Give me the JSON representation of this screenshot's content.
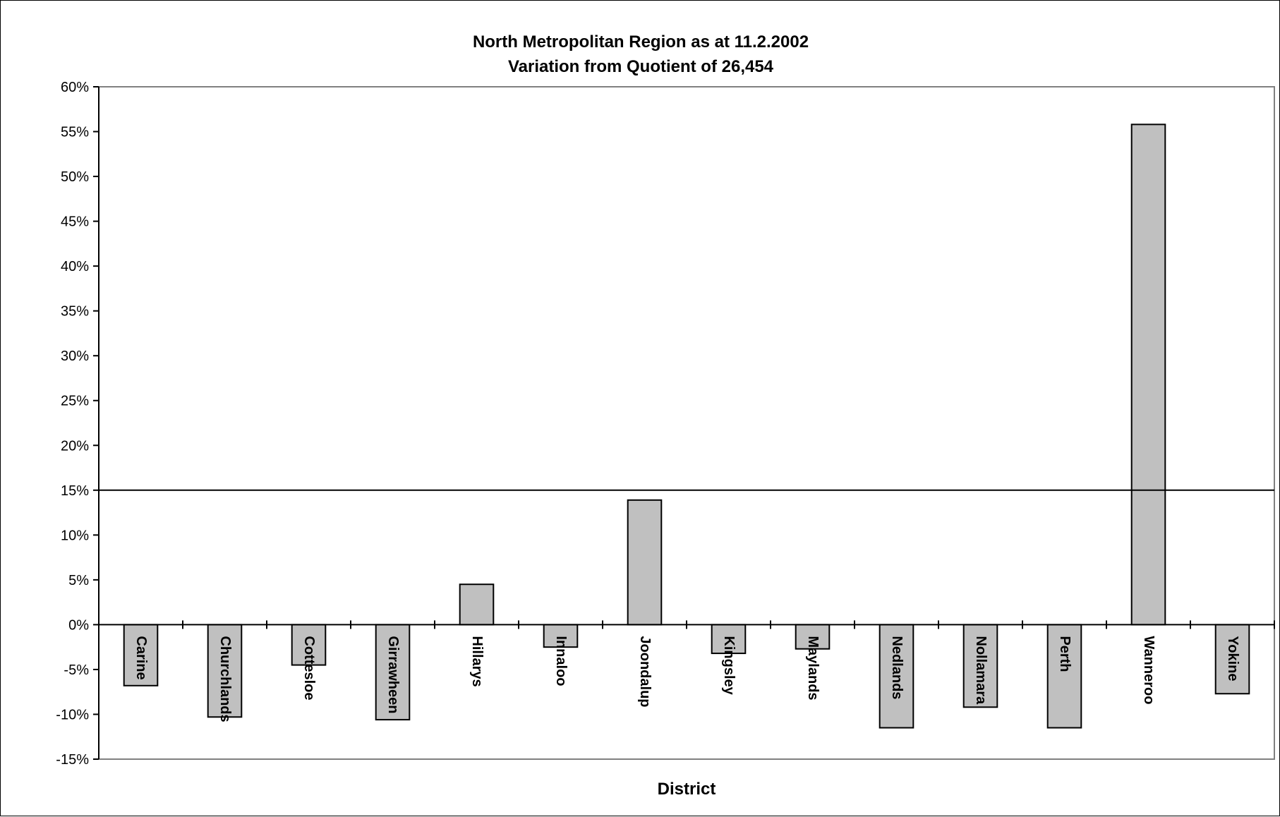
{
  "chart_data": {
    "type": "bar",
    "title_line1": "North Metropolitan Region as at 11.2.2002",
    "title_line2": "Variation from Quotient of 26,454",
    "xlabel": "District",
    "ylabel": "",
    "ylim": [
      -15,
      60
    ],
    "ytick_step": 5,
    "ytick_labels": [
      "-15%",
      "-10%",
      "-5%",
      "0%",
      "5%",
      "10%",
      "15%",
      "20%",
      "25%",
      "30%",
      "35%",
      "40%",
      "45%",
      "50%",
      "55%",
      "60%"
    ],
    "reference_line": 15,
    "categories": [
      "Carine",
      "Churchlands",
      "Cottesloe",
      "Girrawheen",
      "Hillarys",
      "Innaloo",
      "Joondalup",
      "Kingsley",
      "Maylands",
      "Nedlands",
      "Nollamara",
      "Perth",
      "Wanneroo",
      "Yokine"
    ],
    "values": [
      -6.8,
      -10.3,
      -4.5,
      -10.6,
      4.5,
      -2.5,
      13.9,
      -3.2,
      -2.7,
      -11.5,
      -9.2,
      -11.5,
      55.8,
      -7.7
    ],
    "bar_color": "#c0c0c0",
    "grid": false,
    "legend": "none"
  }
}
